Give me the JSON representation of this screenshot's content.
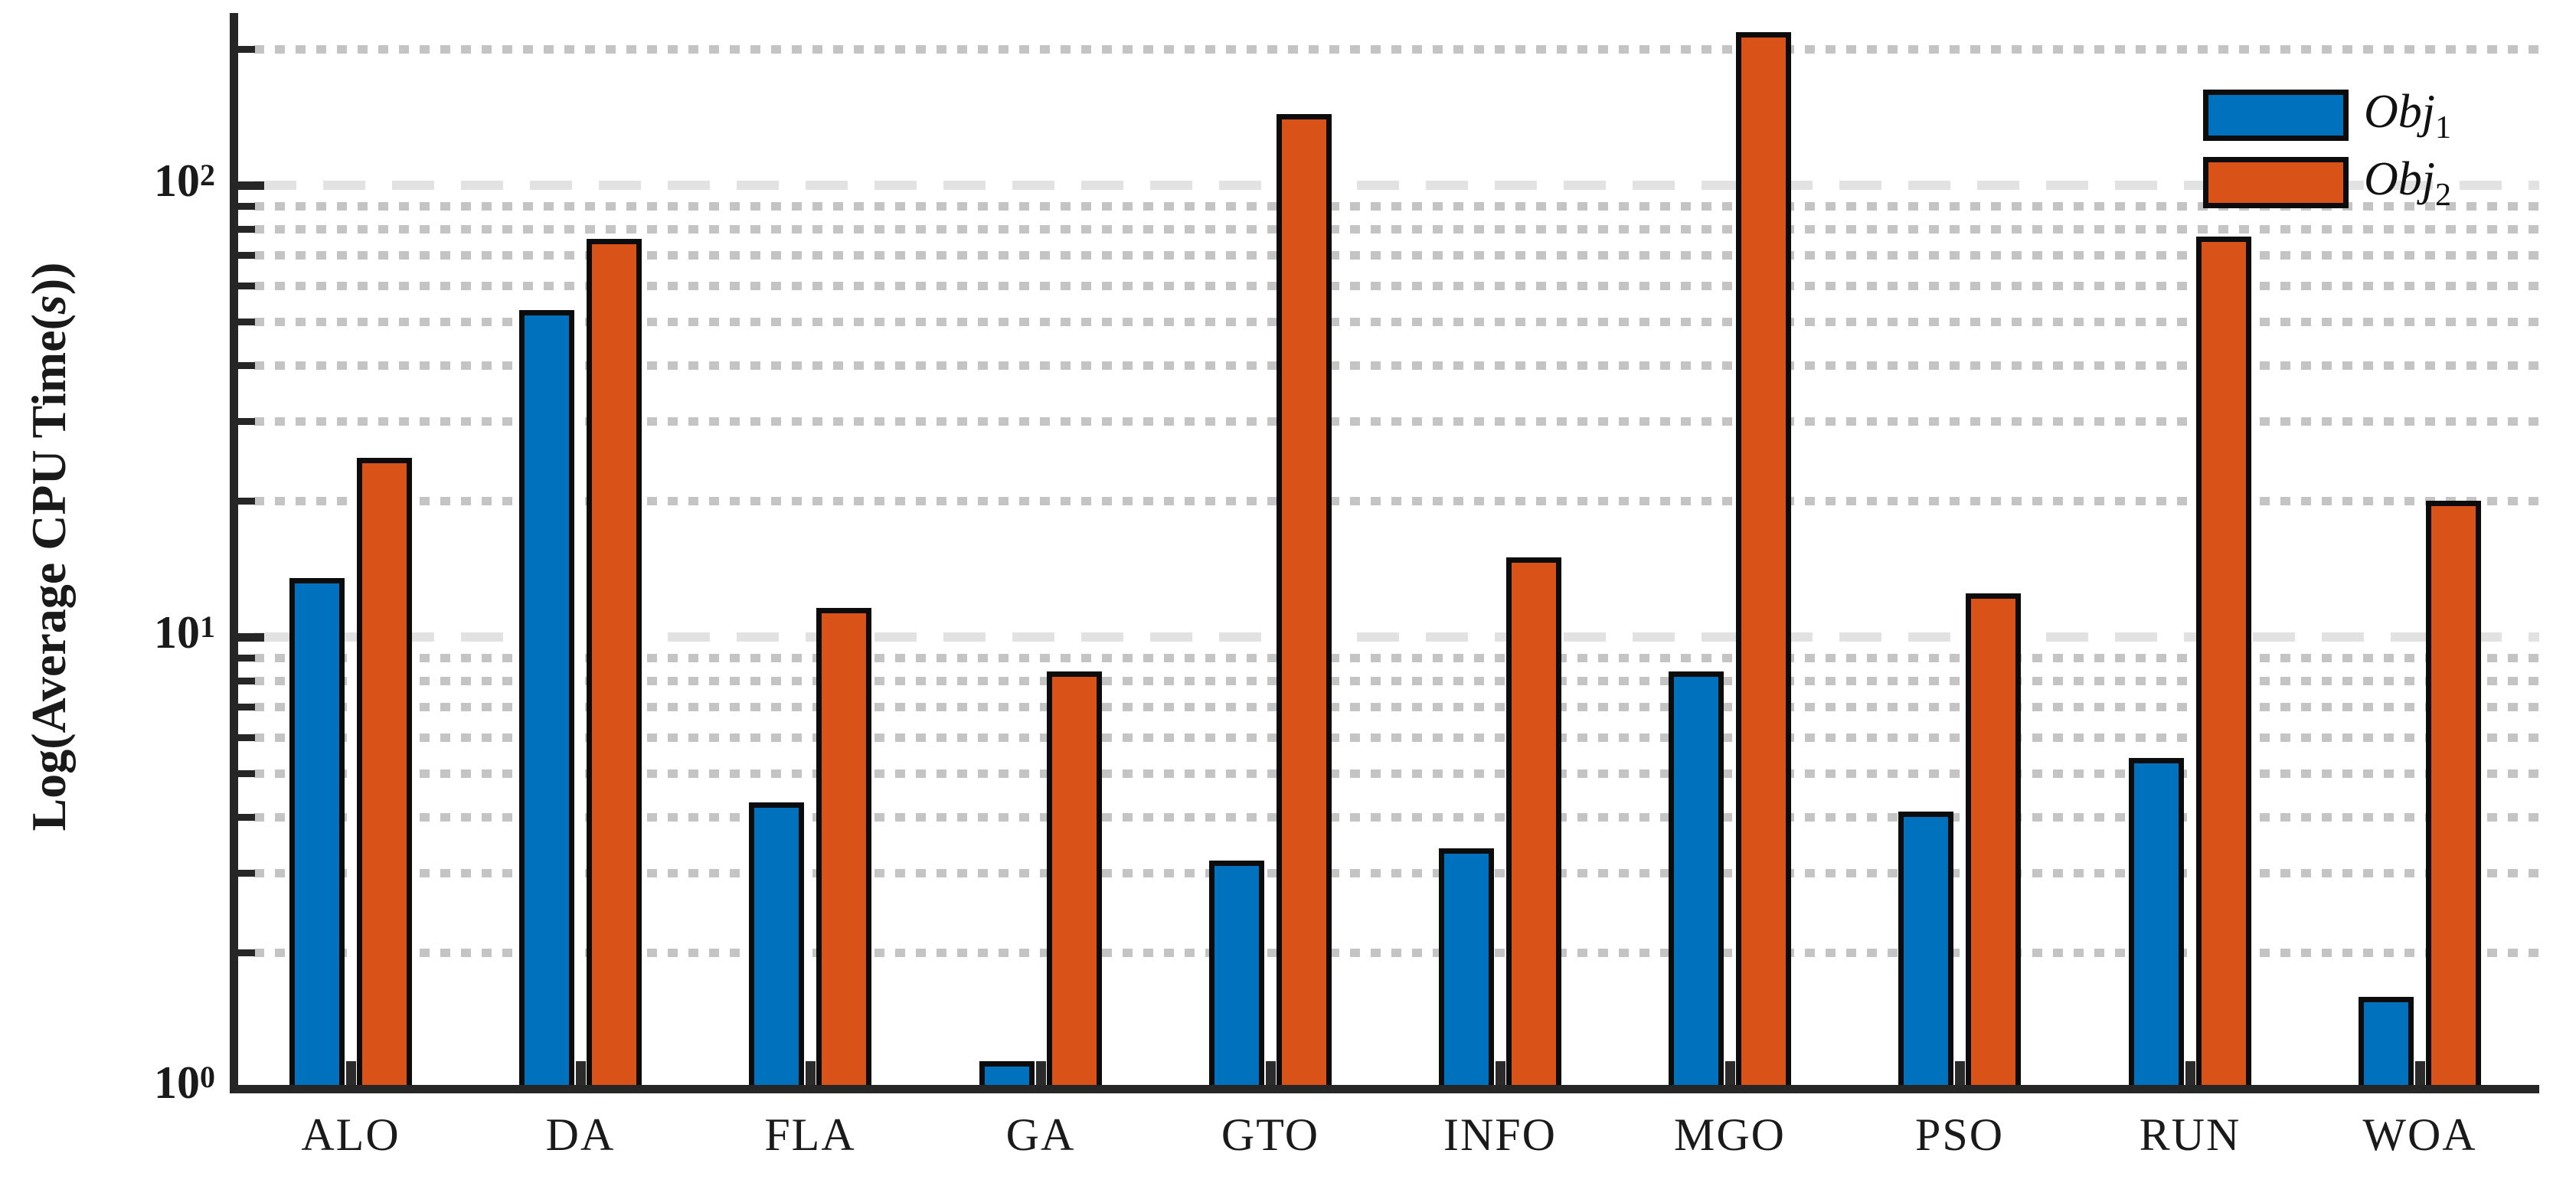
{
  "figure": {
    "ylabel": {
      "prefix": "Log(Average CPU Time(",
      "italic_s": "s",
      "suffix": "))"
    },
    "y_ticks": [
      {
        "base": "10",
        "exp": "0"
      },
      {
        "base": "10",
        "exp": "1"
      },
      {
        "base": "10",
        "exp": "2"
      }
    ],
    "legend": [
      {
        "label": "Obj",
        "sub": "1"
      },
      {
        "label": "Obj",
        "sub": "2"
      }
    ]
  },
  "chart_data": {
    "type": "bar",
    "title": "",
    "xlabel": "",
    "ylabel": "Log(Average CPU Time(s))",
    "y_scale": "log10",
    "ylim": [
      1,
      240
    ],
    "grid": true,
    "legend_position": "upper right",
    "major_gridline_values": [
      10,
      100
    ],
    "minor_gridline_values": [
      2,
      3,
      4,
      5,
      6,
      7,
      8,
      9,
      20,
      30,
      40,
      50,
      60,
      70,
      80,
      90,
      200
    ],
    "categories": [
      "ALO",
      "DA",
      "FLA",
      "GA",
      "GTO",
      "INFO",
      "MGO",
      "PSO",
      "RUN",
      "WOA"
    ],
    "series": [
      {
        "name": "Obj1",
        "color": "#0072BD",
        "values": [
          13.5,
          53,
          4.3,
          1.15,
          3.2,
          3.4,
          8.4,
          4.1,
          5.4,
          1.6
        ]
      },
      {
        "name": "Obj2",
        "color": "#D95319",
        "values": [
          24.9,
          76,
          11.6,
          8.4,
          144,
          15,
          218,
          12.5,
          77,
          20
        ]
      }
    ],
    "edge_stub_value": 1.15
  }
}
